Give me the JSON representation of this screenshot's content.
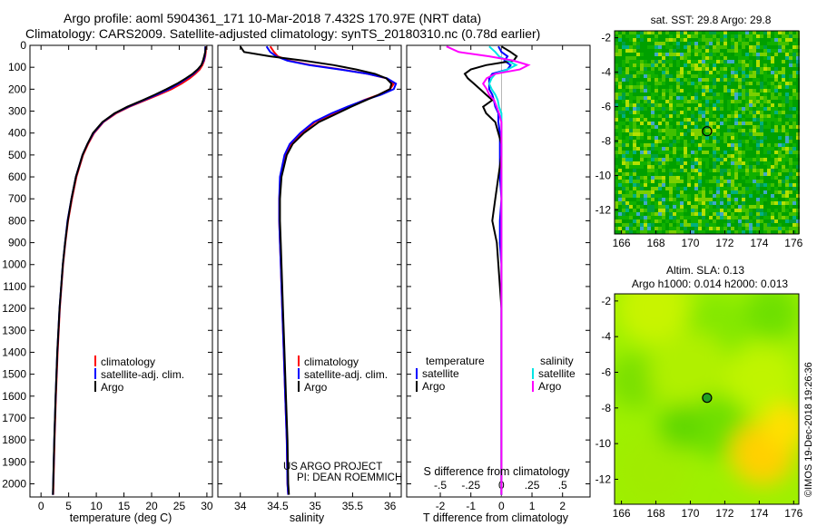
{
  "title": {
    "line1": "Argo profile: aoml 5904361_171 10-Mar-2018 7.432S 170.97E (NRT data)",
    "line2": "Climatology: CARS2009. Satellite-adjusted climatology: synTS_20180310.nc (0.78d earlier)"
  },
  "colors": {
    "climatology": "#ff0000",
    "satellite": "#0000ff",
    "argo": "#000000",
    "salinity_satellite": "#00e5e5",
    "salinity_argo": "#ff00ff"
  },
  "footer": {
    "line1": "US ARGO PROJECT",
    "line2": "PI: DEAN ROEMMICH"
  },
  "watermark": "©IMOS 19-Dec-2018 19:26:36",
  "chart_data": [
    {
      "type": "line",
      "id": "temperature",
      "xlabel": "temperature (deg C)",
      "xlim": [
        -2,
        31
      ],
      "ylim": [
        2060,
        0
      ],
      "xticks": [
        0,
        5,
        10,
        15,
        20,
        25,
        30
      ],
      "yticks": [
        0,
        100,
        200,
        300,
        400,
        500,
        600,
        700,
        800,
        900,
        1000,
        1100,
        1200,
        1300,
        1400,
        1500,
        1600,
        1700,
        1800,
        1900,
        2000
      ],
      "legend": [
        "climatology",
        "satellite-adj. clim.",
        "Argo"
      ],
      "depth": [
        5,
        30,
        50,
        70,
        90,
        110,
        130,
        150,
        175,
        200,
        225,
        250,
        280,
        310,
        350,
        400,
        450,
        500,
        600,
        700,
        800,
        900,
        1000,
        1200,
        1400,
        1600,
        1800,
        2000,
        2050
      ],
      "series": [
        {
          "name": "climatology",
          "values": [
            29.8,
            29.8,
            29.7,
            29.5,
            29.2,
            28.7,
            27.9,
            26.9,
            25.4,
            23.6,
            21.3,
            18.9,
            16.0,
            13.6,
            11.3,
            9.6,
            8.5,
            7.6,
            6.4,
            5.6,
            4.9,
            4.4,
            4.0,
            3.4,
            3.0,
            2.7,
            2.45,
            2.25,
            2.2
          ]
        },
        {
          "name": "satellite-adj. clim.",
          "values": [
            29.7,
            29.7,
            29.6,
            29.4,
            29.0,
            28.4,
            27.6,
            26.4,
            24.9,
            23.1,
            20.9,
            18.6,
            15.8,
            13.4,
            11.2,
            9.5,
            8.4,
            7.5,
            6.3,
            5.5,
            4.8,
            4.35,
            3.95,
            3.35,
            2.95,
            2.65,
            2.4,
            2.2,
            2.15
          ]
        },
        {
          "name": "Argo",
          "values": [
            29.8,
            29.7,
            29.5,
            29.3,
            29.0,
            28.3,
            27.4,
            26.2,
            24.6,
            22.7,
            20.6,
            18.4,
            15.6,
            13.3,
            11.1,
            9.4,
            8.4,
            7.5,
            6.3,
            5.5,
            4.85,
            4.35,
            3.95,
            3.35,
            2.95,
            2.65,
            2.4,
            2.2,
            2.15
          ]
        }
      ]
    },
    {
      "type": "line",
      "id": "salinity",
      "xlabel": "salinity",
      "xlim": [
        33.7,
        36.15
      ],
      "ylim": [
        2060,
        0
      ],
      "xticks": [
        34,
        34.5,
        35,
        35.5,
        36
      ],
      "legend": [
        "climatology",
        "satellite-adj. clim.",
        "Argo"
      ],
      "depth": [
        5,
        30,
        50,
        70,
        90,
        110,
        130,
        150,
        175,
        200,
        225,
        250,
        280,
        310,
        350,
        400,
        450,
        500,
        600,
        700,
        800,
        900,
        1000,
        1200,
        1400,
        1600,
        1800,
        2000,
        2050
      ],
      "series": [
        {
          "name": "climatology",
          "values": [
            34.4,
            34.45,
            34.5,
            34.65,
            34.95,
            35.35,
            35.7,
            35.95,
            36.05,
            36.0,
            35.85,
            35.65,
            35.45,
            35.25,
            35.0,
            34.82,
            34.68,
            34.6,
            34.54,
            34.52,
            34.52,
            34.53,
            34.54,
            34.56,
            34.58,
            34.6,
            34.62,
            34.63,
            34.64
          ]
        },
        {
          "name": "satellite-adj. clim.",
          "values": [
            34.35,
            34.4,
            34.48,
            34.63,
            34.92,
            35.33,
            35.7,
            35.96,
            36.08,
            36.05,
            35.88,
            35.66,
            35.43,
            35.22,
            34.98,
            34.8,
            34.66,
            34.59,
            34.53,
            34.52,
            34.52,
            34.53,
            34.54,
            34.56,
            34.58,
            34.6,
            34.62,
            34.63,
            34.64
          ]
        },
        {
          "name": "Argo",
          "values": [
            34.0,
            34.05,
            34.4,
            34.85,
            35.25,
            35.55,
            35.8,
            35.95,
            36.02,
            36.0,
            35.85,
            35.68,
            35.48,
            35.3,
            35.05,
            34.85,
            34.7,
            34.62,
            34.55,
            34.53,
            34.53,
            34.54,
            34.55,
            34.57,
            34.59,
            34.61,
            34.63,
            34.64,
            34.65
          ]
        }
      ]
    },
    {
      "type": "line",
      "id": "difference",
      "xlabel": "T difference from climatology",
      "xlabel_top": "S difference from climatology",
      "xlim": [
        -3.1,
        2.9
      ],
      "ylim": [
        2060,
        0
      ],
      "xticks": [
        -2,
        -1,
        0,
        1,
        2
      ],
      "xticks_S": [
        -0.5,
        -0.25,
        0,
        0.25,
        0.5
      ],
      "legend_headers": [
        "temperature",
        "salinity"
      ],
      "legend_left": [
        "satellite",
        "Argo"
      ],
      "legend_right": [
        "satellite",
        "Argo"
      ],
      "depth": [
        5,
        30,
        50,
        70,
        90,
        110,
        130,
        150,
        175,
        200,
        225,
        250,
        280,
        310,
        350,
        400,
        450,
        500,
        600,
        700,
        800,
        900,
        1000,
        1200,
        1400,
        1600,
        1800,
        2000,
        2050
      ],
      "series": [
        {
          "name": "temperature satellite",
          "values": [
            -0.1,
            0.0,
            0.2,
            0.1,
            0.3,
            0.2,
            -0.3,
            -0.4,
            -0.4,
            -0.4,
            -0.3,
            -0.25,
            -0.2,
            -0.1,
            -0.1,
            -0.05,
            -0.05,
            -0.05,
            -0.05,
            0.0,
            -0.05,
            -0.05,
            0.0,
            0.0,
            0.0,
            0.0,
            0.0,
            0.0,
            0.0
          ]
        },
        {
          "name": "temperature Argo",
          "values": [
            0.0,
            0.3,
            0.5,
            0.4,
            -0.5,
            -1.0,
            -1.2,
            -1.1,
            -0.9,
            -0.7,
            -0.5,
            -0.3,
            -0.6,
            -0.5,
            -0.2,
            -0.1,
            0.0,
            0.0,
            -0.1,
            -0.2,
            -0.3,
            -0.15,
            -0.1,
            0.0,
            0.0,
            0.0,
            0.0,
            0.0,
            0.0
          ]
        },
        {
          "name": "salinity satellite",
          "values": [
            -0.1,
            -0.05,
            -0.02,
            0.05,
            0.12,
            0.05,
            -0.05,
            -0.08,
            -0.1,
            -0.08,
            -0.05,
            -0.03,
            -0.02,
            0.0,
            0.0,
            0.0,
            0.0,
            0.0,
            0.0,
            0.0,
            0.0,
            0.0,
            0.0,
            0.0,
            0.0,
            0.0,
            0.0,
            0.0,
            0.0
          ]
        },
        {
          "name": "salinity Argo",
          "values": [
            -0.45,
            -0.35,
            -0.1,
            0.1,
            0.22,
            0.15,
            -0.05,
            -0.12,
            -0.15,
            -0.12,
            -0.1,
            -0.06,
            -0.04,
            -0.02,
            0.0,
            0.0,
            0.0,
            0.0,
            0.0,
            0.0,
            0.0,
            0.0,
            0.0,
            0.0,
            0.0,
            0.0,
            0.0,
            0.0,
            0.0
          ]
        }
      ]
    },
    {
      "type": "heatmap",
      "id": "sst_map",
      "title": "sat. SST: 29.8 Argo: 29.8",
      "xlim": [
        165.6,
        176.3
      ],
      "ylim": [
        -13.4,
        -1.6
      ],
      "xticks": [
        166,
        168,
        170,
        172,
        174,
        176
      ],
      "yticks": [
        -2,
        -4,
        -6,
        -8,
        -10,
        -12
      ],
      "argo_position": [
        170.97,
        -7.432
      ]
    },
    {
      "type": "heatmap",
      "id": "sla_map",
      "title": "Altim. SLA: 0.13",
      "subtitle": "Argo h1000: 0.014 h2000: 0.013",
      "xlim": [
        165.6,
        176.3
      ],
      "ylim": [
        -13.4,
        -1.6
      ],
      "xticks": [
        166,
        168,
        170,
        172,
        174,
        176
      ],
      "yticks": [
        -2,
        -4,
        -6,
        -8,
        -10,
        -12
      ],
      "argo_position": [
        170.97,
        -7.432
      ]
    }
  ]
}
